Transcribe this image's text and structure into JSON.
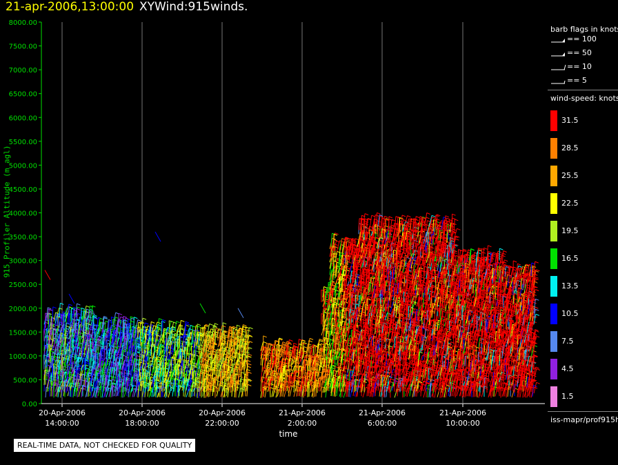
{
  "header": {
    "date": "21-apr-2006,13:00:00",
    "name": "XYWind:915winds."
  },
  "y_axis_label": "915 Profiler Altitude (m agl)",
  "x_axis_label": "time",
  "notice": "REAL-TIME DATA, NOT CHECKED FOR QUALITY",
  "legend": {
    "barb_title": "barb flags in knots",
    "barbs": [
      {
        "label": "== 100",
        "kind": "flag"
      },
      {
        "label": "== 50",
        "kind": "flag"
      },
      {
        "label": "== 10",
        "kind": "full"
      },
      {
        "label": "== 5",
        "kind": "half"
      }
    ],
    "speed_title": "wind-speed: knots",
    "speeds": [
      {
        "label": "31.5",
        "color": "#ff0000"
      },
      {
        "label": "28.5",
        "color": "#ff8000"
      },
      {
        "label": "25.5",
        "color": "#ffa800"
      },
      {
        "label": "22.5",
        "color": "#ffff00"
      },
      {
        "label": "19.5",
        "color": "#b0f020"
      },
      {
        "label": "16.5",
        "color": "#00e000"
      },
      {
        "label": "13.5",
        "color": "#00f0f0"
      },
      {
        "label": "10.5",
        "color": "#0000ff"
      },
      {
        "label": "7.5",
        "color": "#5588ee"
      },
      {
        "label": "4.5",
        "color": "#9020e0"
      },
      {
        "label": "1.5",
        "color": "#ee80e0"
      }
    ],
    "source": "iss-mapr/prof915h"
  },
  "chart_data": {
    "type": "scatter",
    "ylim": [
      0,
      8000
    ],
    "yticks": [
      "0.00",
      "500.00",
      "1000.00",
      "1500.00",
      "2000.00",
      "2500.00",
      "3000.00",
      "3500.00",
      "4000.00",
      "4500.00",
      "5000.00",
      "5500.00",
      "6000.00",
      "6500.00",
      "7000.00",
      "7500.00",
      "8000.00"
    ],
    "xticks": [
      {
        "line1": "20-Apr-2006",
        "line2": "14:00:00"
      },
      {
        "line1": "20-Apr-2006",
        "line2": "18:00:00"
      },
      {
        "line1": "20-Apr-2006",
        "line2": "22:00:00"
      },
      {
        "line1": "21-Apr-2006",
        "line2": "2:00:00"
      },
      {
        "line1": "21-Apr-2006",
        "line2": "6:00:00"
      },
      {
        "line1": "21-Apr-2006",
        "line2": "10:00:00"
      }
    ],
    "grid_x": true,
    "approx_max_wind_altitude_m_by_hour": [
      {
        "time": "20-Apr-2006 13:00",
        "top_m": 2200,
        "dominant_speed_kt": 13.5
      },
      {
        "time": "20-Apr-2006 16:00",
        "top_m": 2000,
        "dominant_speed_kt": 16.5
      },
      {
        "time": "20-Apr-2006 19:00",
        "top_m": 1700,
        "dominant_speed_kt": 19.5
      },
      {
        "time": "20-Apr-2006 22:00",
        "top_m": 1400,
        "dominant_speed_kt": 22.5
      },
      {
        "time": "21-Apr-2006 01:00",
        "top_m": 1100,
        "dominant_speed_kt": 28.5
      },
      {
        "time": "21-Apr-2006 03:00",
        "top_m": 2800,
        "dominant_speed_kt": 31.5
      },
      {
        "time": "21-Apr-2006 06:00",
        "top_m": 3800,
        "dominant_speed_kt": 31.5
      },
      {
        "time": "21-Apr-2006 09:00",
        "top_m": 3400,
        "dominant_speed_kt": 31.5
      },
      {
        "time": "21-Apr-2006 12:00",
        "top_m": 2600,
        "dominant_speed_kt": 31.5
      }
    ]
  }
}
